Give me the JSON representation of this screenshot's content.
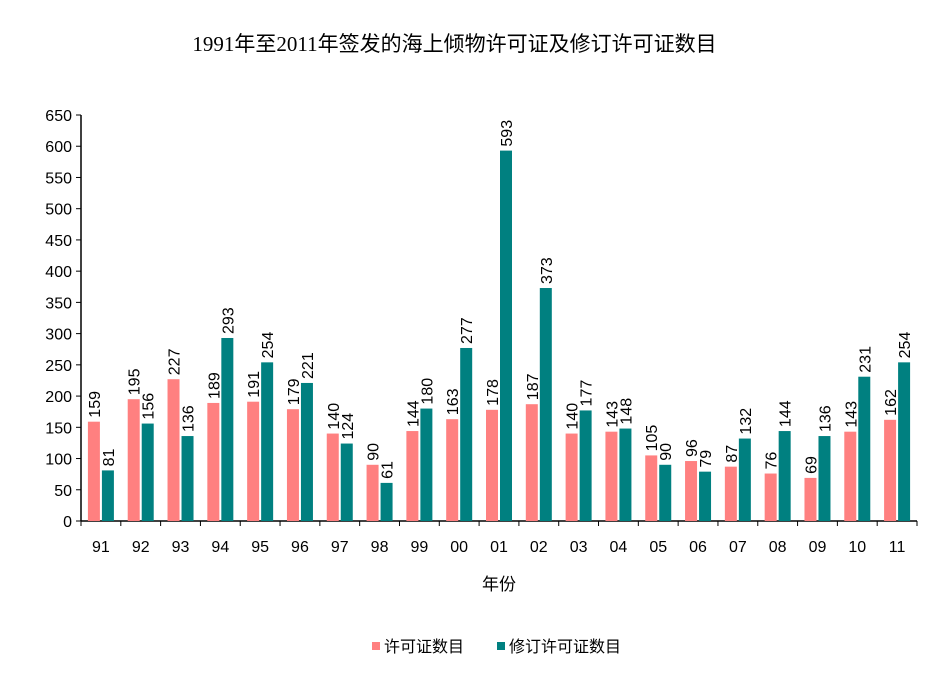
{
  "chart_data": {
    "type": "bar",
    "title": "1991年至2011年签发的海上倾物许可证及修订许可证数目",
    "xlabel": "年份",
    "ylabel": "",
    "ylim": [
      0,
      650
    ],
    "ytick_step": 50,
    "grid": false,
    "legend_position": "bottom",
    "categories": [
      "91",
      "92",
      "93",
      "94",
      "95",
      "96",
      "97",
      "98",
      "99",
      "00",
      "01",
      "02",
      "03",
      "04",
      "05",
      "06",
      "07",
      "08",
      "09",
      "10",
      "11"
    ],
    "series": [
      {
        "name": "许可证数目",
        "color": "#FF8080",
        "values": [
          159,
          195,
          227,
          189,
          191,
          179,
          140,
          90,
          144,
          163,
          178,
          187,
          140,
          143,
          105,
          96,
          87,
          76,
          69,
          143,
          162
        ]
      },
      {
        "name": "修订许可证数目",
        "color": "#008080",
        "values": [
          81,
          156,
          136,
          293,
          254,
          221,
          124,
          61,
          180,
          277,
          593,
          373,
          177,
          148,
          90,
          79,
          132,
          144,
          136,
          231,
          254
        ]
      }
    ]
  }
}
